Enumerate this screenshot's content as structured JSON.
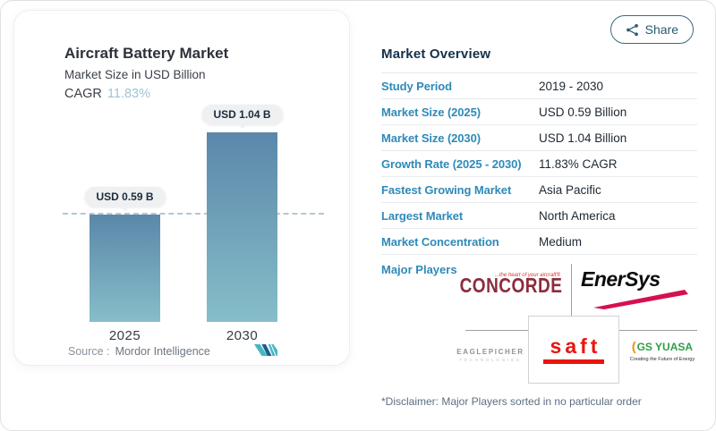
{
  "share": {
    "label": "Share"
  },
  "chart_panel": {
    "title": "Aircraft Battery Market",
    "subtitle": "Market Size in USD Billion",
    "cagr_label": "CAGR",
    "cagr_value": "11.83%",
    "source_label": "Source :",
    "source_value": "Mordor Intelligence"
  },
  "chart_data": {
    "type": "bar",
    "title": "Aircraft Battery Market",
    "subtitle": "Market Size in USD Billion",
    "unit": "USD Billion",
    "categories": [
      "2025",
      "2030"
    ],
    "values": [
      0.59,
      1.04
    ],
    "value_labels": [
      "USD 0.59 B",
      "USD 1.04 B"
    ],
    "cagr": "11.83%",
    "reference_line": 0.59,
    "ylim": [
      0,
      1.04
    ],
    "grid": false,
    "legend": false,
    "bar_gradient_top": "#5b87aa",
    "bar_gradient_bottom": "#86bec9"
  },
  "overview": {
    "heading": "Market Overview",
    "rows": [
      {
        "label": "Study Period",
        "value": "2019 - 2030"
      },
      {
        "label": "Market Size (2025)",
        "value": "USD 0.59 Billion"
      },
      {
        "label": "Market Size (2030)",
        "value": "USD 1.04 Billion"
      },
      {
        "label": "Growth Rate (2025 - 2030)",
        "value": "11.83% CAGR"
      },
      {
        "label": "Fastest Growing Market",
        "value": "Asia Pacific"
      },
      {
        "label": "Largest Market",
        "value": "North America"
      },
      {
        "label": "Market Concentration",
        "value": "Medium"
      }
    ],
    "major_players_label": "Major Players",
    "players": [
      {
        "name": "Concorde",
        "logo_text": "CONCORDE",
        "tagline": "...the heart of your aircraft®"
      },
      {
        "name": "EnerSys",
        "logo_text": "EnerSys"
      },
      {
        "name": "EaglePicher",
        "logo_text": "EAGLEPICHER",
        "sub": "TECHNOLOGIES"
      },
      {
        "name": "Saft",
        "logo_text": "saft"
      },
      {
        "name": "GS Yuasa",
        "logo_text": "GS YUASA",
        "tagline": "Creating the Future of Energy"
      }
    ],
    "disclaimer": "*Disclaimer: Major Players sorted in no particular order"
  },
  "colors": {
    "table_label_blue": "#2e8ab9",
    "cagr_light_blue": "#9fc3da",
    "heading_navy": "#15314b",
    "tooltip_bg": "#eef0f2",
    "dashed_line": "#b3c7d2",
    "saft_red": "#e8150d",
    "concorde_maroon": "#8c2c3e",
    "gs_green": "#2f9e48",
    "gs_orange": "#f18a00",
    "enersys_swoosh": "#d6104f",
    "mordor_teal": "#46b7c3",
    "mordor_navy": "#1d5f8c"
  }
}
